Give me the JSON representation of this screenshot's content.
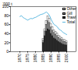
{
  "chart_data": {
    "type": "bar",
    "stacked": true,
    "y_label": "'000 t",
    "legend": "top-right",
    "x": [
      1970,
      1971,
      1972,
      1973,
      1974,
      1975,
      1976,
      1977,
      1978,
      1979,
      1980,
      1981,
      1982,
      1983,
      1984,
      1985,
      1986,
      1987,
      1988,
      1989,
      1990,
      1991,
      1992,
      1993,
      1994,
      1995,
      1996,
      1997,
      1998,
      1999,
      2000
    ],
    "xlim": [
      1970,
      2000
    ],
    "xticks": [
      1970,
      1975,
      1980,
      1985,
      1990,
      1995,
      2000
    ],
    "ylim": [
      0,
      100
    ],
    "yticks": [
      0,
      20,
      40,
      60,
      80,
      100
    ],
    "series": [
      {
        "name": "Trawl",
        "type": "bar",
        "color": "#333333",
        "values": [
          null,
          null,
          null,
          null,
          null,
          null,
          null,
          null,
          null,
          null,
          null,
          null,
          null,
          null,
          null,
          20,
          35,
          45,
          50,
          48,
          40,
          35,
          30,
          28,
          25,
          22,
          20,
          18,
          16,
          15,
          14
        ]
      },
      {
        "name": "Gill",
        "type": "bar",
        "color": "#999999",
        "values": [
          null,
          null,
          null,
          null,
          null,
          null,
          null,
          null,
          null,
          null,
          null,
          null,
          null,
          null,
          null,
          5,
          10,
          15,
          18,
          16,
          14,
          12,
          12,
          10,
          10,
          9,
          8,
          8,
          7,
          7,
          6
        ]
      },
      {
        "name": "Other",
        "type": "bar",
        "color": "#ffffff",
        "values": [
          null,
          null,
          null,
          null,
          null,
          null,
          null,
          null,
          null,
          null,
          null,
          null,
          null,
          null,
          null,
          3,
          5,
          8,
          10,
          9,
          8,
          7,
          6,
          6,
          5,
          5,
          5,
          4,
          4,
          4,
          4
        ]
      },
      {
        "name": "Total",
        "type": "line",
        "color": "#5bb8e0",
        "values": [
          78,
          80,
          76,
          74,
          72,
          70,
          72,
          74,
          73,
          75,
          76,
          78,
          80,
          82,
          83,
          84,
          86,
          88,
          85,
          80,
          72,
          65,
          60,
          58,
          55,
          50,
          48,
          45,
          42,
          40,
          38
        ]
      }
    ]
  }
}
